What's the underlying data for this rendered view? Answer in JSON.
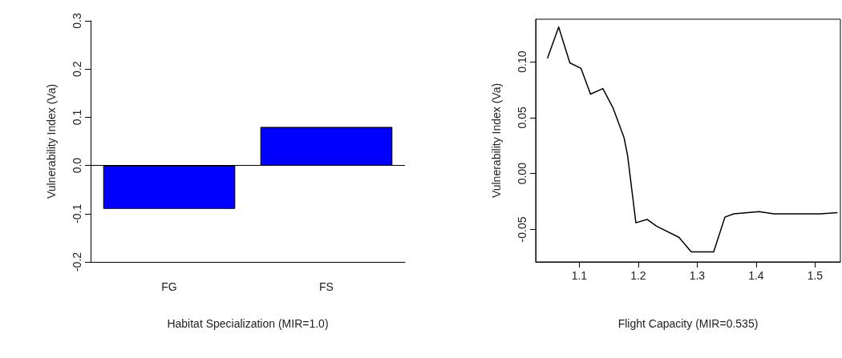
{
  "chart_data": [
    {
      "type": "bar",
      "xlabel": "Habitat Specialization (MIR=1.0)",
      "ylabel": "Vulnerability Index (Va)",
      "categories": [
        "FG",
        "FS"
      ],
      "values": [
        -0.09,
        0.08
      ],
      "color": "#0000ff",
      "ylim": [
        -0.2,
        0.3
      ],
      "yticks": [
        -0.2,
        -0.1,
        {
          "value": 0,
          "label": "0.0"
        },
        0.1,
        0.2,
        0.3
      ],
      "ref_lines": [
        {
          "axis": "y",
          "value": 0,
          "color": "#000000"
        }
      ]
    },
    {
      "type": "line",
      "xlabel": "Flight Capacity (MIR=0.535)",
      "ylabel": "Vulnerability Index (Va)",
      "color": "#000000",
      "x": [
        1.046,
        1.065,
        1.084,
        1.103,
        1.119,
        1.14,
        1.157,
        1.176,
        1.182,
        1.196,
        1.215,
        1.231,
        1.269,
        1.29,
        1.328,
        1.347,
        1.362,
        1.405,
        1.43,
        1.509,
        1.538
      ],
      "values": [
        0.103,
        0.131,
        0.099,
        0.094,
        0.071,
        0.076,
        0.059,
        0.032,
        0.016,
        -0.044,
        -0.041,
        -0.047,
        -0.057,
        -0.07,
        -0.07,
        -0.039,
        -0.036,
        -0.034,
        -0.036,
        -0.036,
        -0.035
      ],
      "xlim": [
        1.026,
        1.543
      ],
      "ylim": [
        -0.079,
        0.138
      ],
      "xticks": [
        1.1,
        1.2,
        1.3,
        1.4,
        1.5
      ],
      "yticks": [
        {
          "value": -0.05,
          "label": "-0.05"
        },
        {
          "value": 0,
          "label": "0.00"
        },
        {
          "value": 0.05,
          "label": "0.05"
        },
        {
          "value": 0.1,
          "label": "0.10"
        }
      ],
      "marker": "none",
      "line_style": "solid"
    }
  ]
}
